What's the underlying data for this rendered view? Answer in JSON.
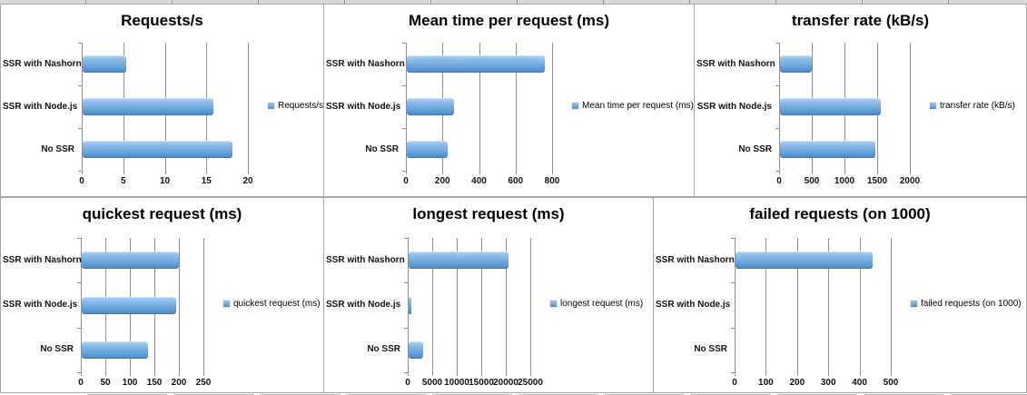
{
  "colors": {
    "bar_top": "#abd1f0",
    "bar_bottom": "#4a87c8",
    "bar_accent": "#5b9bd5",
    "gridline": "#8e8e8e",
    "panel_border": "#a6a6a6",
    "grid_strip": "#d9d9d9"
  },
  "chart_data": [
    {
      "type": "bar",
      "orientation": "horizontal",
      "title": "Requests/s",
      "legend": [
        "Requests/s"
      ],
      "legend_position": "right",
      "grid": true,
      "categories": [
        "SSR with Nashorn",
        "SSR with Node.js",
        "No SSR"
      ],
      "values": [
        5.3,
        15.7,
        18
      ],
      "xticks": [
        0,
        5,
        10,
        15,
        20
      ],
      "xlim": [
        0,
        20
      ]
    },
    {
      "type": "bar",
      "orientation": "horizontal",
      "title": "Mean time per request (ms)",
      "legend": [
        "Mean time per request (ms)"
      ],
      "legend_position": "right",
      "grid": true,
      "categories": [
        "SSR with Nashorn",
        "SSR with Node.js",
        "No SSR"
      ],
      "values": [
        755,
        256,
        224
      ],
      "xticks": [
        0,
        200,
        400,
        600,
        800
      ],
      "xlim": [
        0,
        800
      ]
    },
    {
      "type": "bar",
      "orientation": "horizontal",
      "title": "transfer rate (kB/s)",
      "legend": [
        "transfer rate (kB/s)"
      ],
      "legend_position": "right",
      "grid": true,
      "categories": [
        "SSR with Nashorn",
        "SSR with Node.js",
        "No SSR"
      ],
      "values": [
        480,
        1540,
        1460
      ],
      "xticks": [
        0,
        500,
        1000,
        1500,
        2000
      ],
      "xlim": [
        0,
        2000
      ]
    },
    {
      "type": "bar",
      "orientation": "horizontal",
      "title": "quickest request (ms)",
      "legend": [
        "quickest request (ms)"
      ],
      "legend_position": "right",
      "grid": true,
      "categories": [
        "SSR with Nashorn",
        "SSR with Node.js",
        "No SSR"
      ],
      "values": [
        198,
        192,
        136
      ],
      "xticks": [
        0,
        50,
        100,
        150,
        200,
        250
      ],
      "xlim": [
        0,
        250
      ]
    },
    {
      "type": "bar",
      "orientation": "horizontal",
      "title": "longest request (ms)",
      "legend": [
        "longest request (ms)"
      ],
      "legend_position": "right",
      "grid": true,
      "categories": [
        "SSR with Nashorn",
        "SSR with Node.js",
        "No SSR"
      ],
      "values": [
        20400,
        550,
        3000
      ],
      "xticks": [
        0,
        5000,
        10000,
        15000,
        20000,
        25000
      ],
      "xlim": [
        0,
        25000
      ]
    },
    {
      "type": "bar",
      "orientation": "horizontal",
      "title": "failed requests (on 1000)",
      "legend": [
        "failed requests (on 1000)"
      ],
      "legend_position": "right",
      "grid": true,
      "categories": [
        "SSR with Nashorn",
        "SSR with Node.js",
        "No SSR"
      ],
      "values": [
        440,
        0,
        0
      ],
      "xticks": [
        0,
        100,
        200,
        300,
        400,
        500
      ],
      "xlim": [
        0,
        500
      ]
    }
  ]
}
